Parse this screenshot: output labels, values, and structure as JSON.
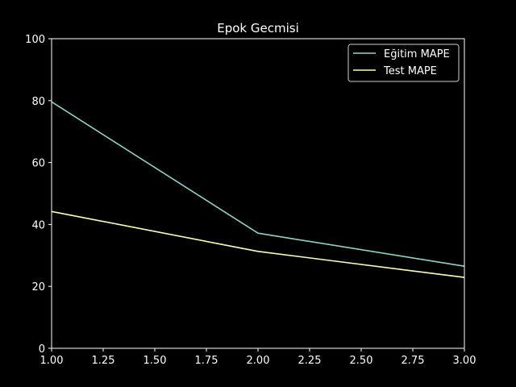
{
  "colors": {
    "background": "#000000",
    "foreground": "#ffffff",
    "series_1": "#8dd3c7",
    "series_2": "#feffb3"
  },
  "chart_data": {
    "type": "line",
    "title": "Epok Gecmisi",
    "xlabel": "",
    "ylabel": "",
    "xlim": [
      1.0,
      3.0
    ],
    "ylim": [
      0,
      100
    ],
    "xticks": [
      "1.00",
      "1.25",
      "1.50",
      "1.75",
      "2.00",
      "2.25",
      "2.50",
      "2.75",
      "3.00"
    ],
    "yticks": [
      "0",
      "20",
      "40",
      "60",
      "80",
      "100"
    ],
    "x": [
      1,
      2,
      3
    ],
    "series": [
      {
        "name": "Eğitim MAPE",
        "values": [
          79.6,
          37.2,
          26.5
        ],
        "color": "#8dd3c7"
      },
      {
        "name": "Test MAPE",
        "values": [
          44.2,
          31.3,
          22.9
        ],
        "color": "#feffb3"
      }
    ],
    "grid": false,
    "legend_position": "top-right"
  }
}
